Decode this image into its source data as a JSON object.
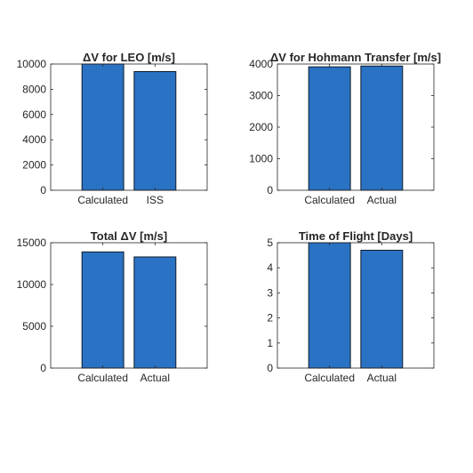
{
  "colors": {
    "bar_fill": "#2a72c3",
    "bar_edge": "#0d1b2a",
    "axes": "#262626",
    "background": "#ffffff"
  },
  "chart_data": [
    {
      "type": "bar",
      "title": "ΔV for LEO [m/s]",
      "categories": [
        "Calculated",
        "ISS"
      ],
      "values": [
        10000,
        9400
      ],
      "ylim": [
        0,
        10000
      ],
      "yticks": [
        0,
        2000,
        4000,
        6000,
        8000,
        10000
      ],
      "ytick_labels": [
        "0",
        "2000",
        "4000",
        "6000",
        "8000",
        "10000"
      ],
      "grid": false
    },
    {
      "type": "bar",
      "title": "ΔV for Hohmann Transfer [m/s]",
      "categories": [
        "Calculated",
        "Actual"
      ],
      "values": [
        3910,
        3935
      ],
      "ylim": [
        0,
        4000
      ],
      "yticks": [
        0,
        1000,
        2000,
        3000,
        4000
      ],
      "ytick_labels": [
        "0",
        "1000",
        "2000",
        "3000",
        "4000"
      ],
      "grid": false
    },
    {
      "type": "bar",
      "title": "Total ΔV [m/s]",
      "categories": [
        "Calculated",
        "Actual"
      ],
      "values": [
        13900,
        13300
      ],
      "ylim": [
        0,
        15000
      ],
      "yticks": [
        0,
        5000,
        10000,
        15000
      ],
      "ytick_labels": [
        "0",
        "5000",
        "10000",
        "15000"
      ],
      "grid": false
    },
    {
      "type": "bar",
      "title": "Time of Flight [Days]",
      "categories": [
        "Calculated",
        "Actual"
      ],
      "values": [
        5.0,
        4.7
      ],
      "ylim": [
        0,
        5
      ],
      "yticks": [
        0,
        1,
        2,
        3,
        4,
        5
      ],
      "ytick_labels": [
        "0",
        "1",
        "2",
        "3",
        "4",
        "5"
      ],
      "grid": false
    }
  ]
}
